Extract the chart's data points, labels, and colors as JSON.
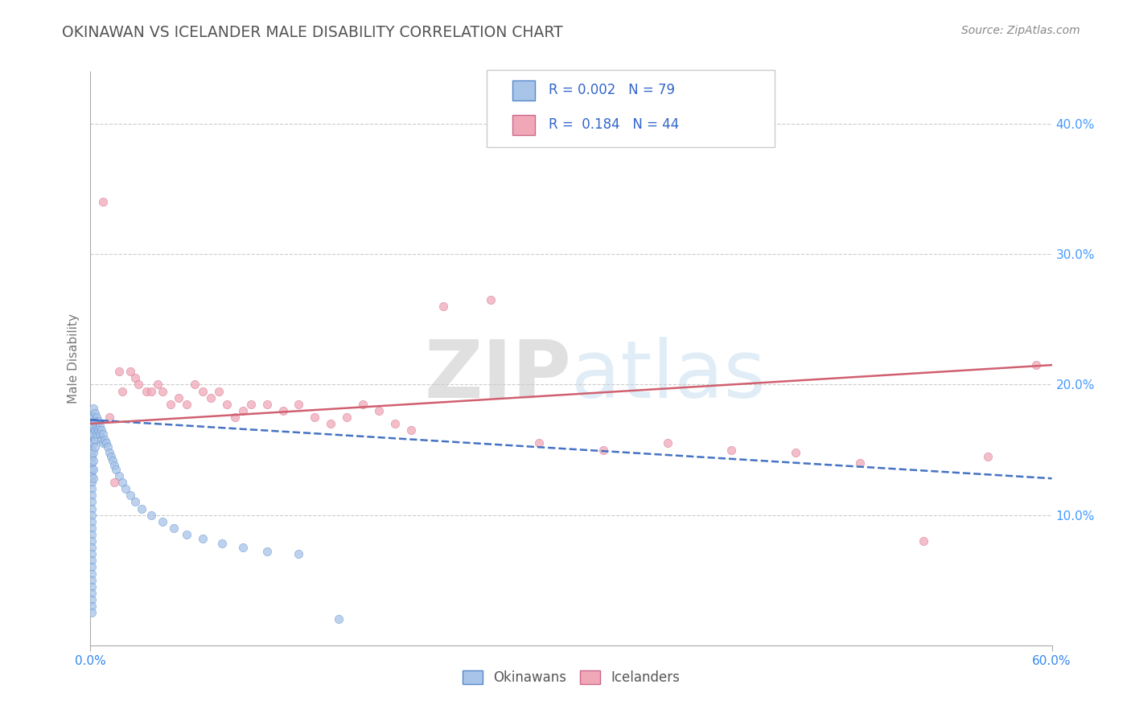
{
  "title": "OKINAWAN VS ICELANDER MALE DISABILITY CORRELATION CHART",
  "source": "Source: ZipAtlas.com",
  "ylabel": "Male Disability",
  "xlim": [
    0.0,
    0.6
  ],
  "ylim": [
    0.0,
    0.44
  ],
  "yticks": [
    0.1,
    0.2,
    0.3,
    0.4
  ],
  "ytick_labels": [
    "10.0%",
    "20.0%",
    "30.0%",
    "40.0%"
  ],
  "okinawan_color": "#a8c4e8",
  "icelander_color": "#f0a8b8",
  "okinawan_edge_color": "#5588cc",
  "icelander_edge_color": "#cc6688",
  "okinawan_line_color": "#4472c4",
  "icelander_line_color": "#d06070",
  "background_color": "#ffffff",
  "watermark_color": "#d0e4f4",
  "grid_color": "#cccccc",
  "tick_color": "#4499ff",
  "title_color": "#555555",
  "source_color": "#888888",
  "legend_text_color": "#3366cc",
  "okinawan_x": [
    0.001,
    0.001,
    0.001,
    0.001,
    0.001,
    0.001,
    0.001,
    0.001,
    0.001,
    0.001,
    0.001,
    0.001,
    0.001,
    0.001,
    0.001,
    0.001,
    0.001,
    0.001,
    0.001,
    0.001,
    0.001,
    0.001,
    0.001,
    0.001,
    0.001,
    0.001,
    0.001,
    0.001,
    0.001,
    0.001,
    0.002,
    0.002,
    0.002,
    0.002,
    0.002,
    0.002,
    0.002,
    0.002,
    0.002,
    0.003,
    0.003,
    0.003,
    0.003,
    0.003,
    0.004,
    0.004,
    0.004,
    0.005,
    0.005,
    0.006,
    0.006,
    0.007,
    0.007,
    0.008,
    0.008,
    0.009,
    0.01,
    0.011,
    0.012,
    0.013,
    0.014,
    0.015,
    0.016,
    0.018,
    0.02,
    0.022,
    0.025,
    0.028,
    0.032,
    0.038,
    0.045,
    0.052,
    0.06,
    0.07,
    0.082,
    0.095,
    0.11,
    0.13,
    0.155
  ],
  "okinawan_y": [
    0.175,
    0.168,
    0.162,
    0.155,
    0.15,
    0.145,
    0.14,
    0.135,
    0.13,
    0.125,
    0.12,
    0.115,
    0.11,
    0.105,
    0.1,
    0.095,
    0.09,
    0.085,
    0.08,
    0.075,
    0.07,
    0.065,
    0.06,
    0.055,
    0.05,
    0.045,
    0.04,
    0.035,
    0.03,
    0.025,
    0.182,
    0.175,
    0.168,
    0.162,
    0.155,
    0.148,
    0.142,
    0.135,
    0.128,
    0.178,
    0.172,
    0.165,
    0.158,
    0.152,
    0.175,
    0.168,
    0.162,
    0.172,
    0.165,
    0.168,
    0.162,
    0.165,
    0.158,
    0.162,
    0.155,
    0.158,
    0.155,
    0.152,
    0.148,
    0.145,
    0.142,
    0.138,
    0.135,
    0.13,
    0.125,
    0.12,
    0.115,
    0.11,
    0.105,
    0.1,
    0.095,
    0.09,
    0.085,
    0.082,
    0.078,
    0.075,
    0.072,
    0.07,
    0.02
  ],
  "icelander_x": [
    0.008,
    0.012,
    0.018,
    0.02,
    0.025,
    0.028,
    0.03,
    0.035,
    0.038,
    0.042,
    0.045,
    0.05,
    0.055,
    0.06,
    0.065,
    0.07,
    0.075,
    0.08,
    0.085,
    0.09,
    0.095,
    0.1,
    0.11,
    0.12,
    0.13,
    0.14,
    0.15,
    0.16,
    0.17,
    0.18,
    0.19,
    0.2,
    0.22,
    0.25,
    0.28,
    0.32,
    0.36,
    0.4,
    0.44,
    0.48,
    0.52,
    0.56,
    0.59,
    0.015
  ],
  "icelander_y": [
    0.34,
    0.175,
    0.21,
    0.195,
    0.21,
    0.205,
    0.2,
    0.195,
    0.195,
    0.2,
    0.195,
    0.185,
    0.19,
    0.185,
    0.2,
    0.195,
    0.19,
    0.195,
    0.185,
    0.175,
    0.18,
    0.185,
    0.185,
    0.18,
    0.185,
    0.175,
    0.17,
    0.175,
    0.185,
    0.18,
    0.17,
    0.165,
    0.26,
    0.265,
    0.155,
    0.15,
    0.155,
    0.15,
    0.148,
    0.14,
    0.08,
    0.145,
    0.215,
    0.125
  ],
  "okin_line_y0": 0.173,
  "okin_line_y1": 0.128,
  "icel_line_y0": 0.17,
  "icel_line_y1": 0.215
}
